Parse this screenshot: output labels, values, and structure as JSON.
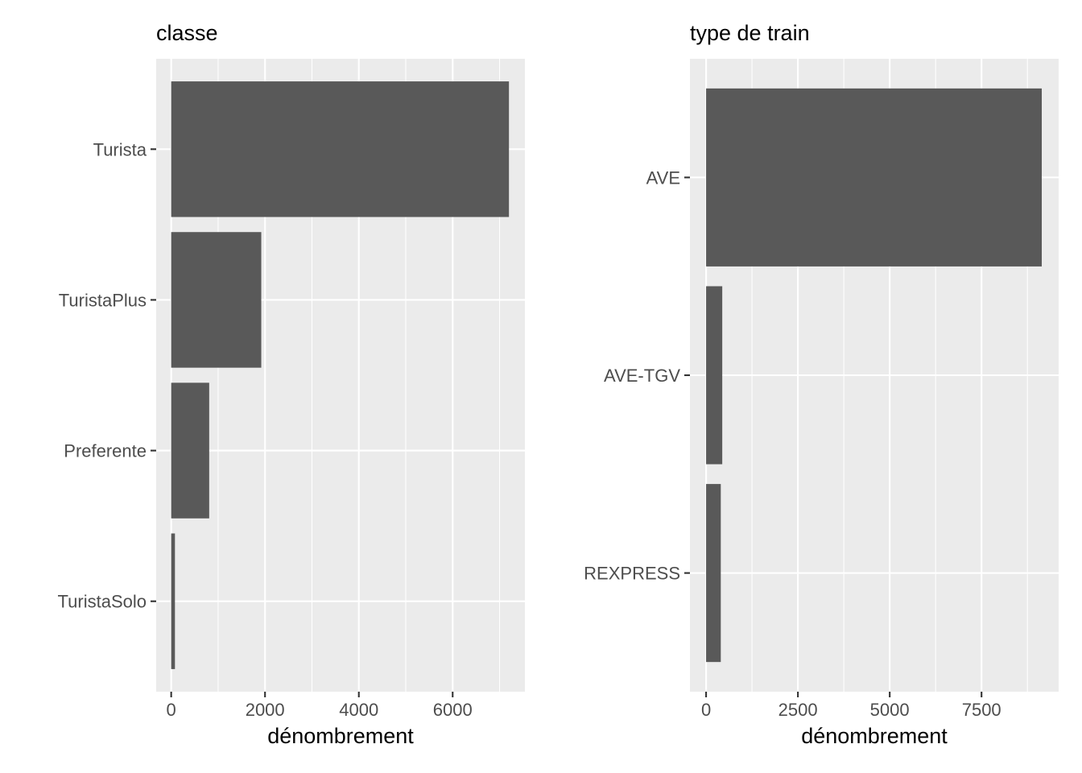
{
  "chart_data": [
    {
      "type": "bar",
      "orientation": "horizontal",
      "title": "classe",
      "xlabel": "dénombrement",
      "ylabel": "",
      "categories": [
        "Turista",
        "TuristaPlus",
        "Preferente",
        "TuristaSolo"
      ],
      "values": [
        7200,
        1920,
        810,
        80
      ],
      "xlim": [
        -320,
        7540
      ],
      "xticks": [
        0,
        2000,
        4000,
        6000
      ],
      "xtick_labels": [
        "0",
        "2000",
        "4000",
        "6000"
      ],
      "grid": true,
      "bar_color": "#595959",
      "panel_color": "#ebebeb"
    },
    {
      "type": "bar",
      "orientation": "horizontal",
      "title": "type de train",
      "xlabel": "dénombrement",
      "ylabel": "",
      "categories": [
        "AVE",
        "AVE-TGV",
        "REXPRESS"
      ],
      "values": [
        9140,
        440,
        400
      ],
      "xlim": [
        -440,
        9600
      ],
      "xticks": [
        0,
        2500,
        5000,
        7500
      ],
      "xtick_labels": [
        "0",
        "2500",
        "5000",
        "7500"
      ],
      "grid": true,
      "bar_color": "#595959",
      "panel_color": "#ebebeb"
    }
  ]
}
